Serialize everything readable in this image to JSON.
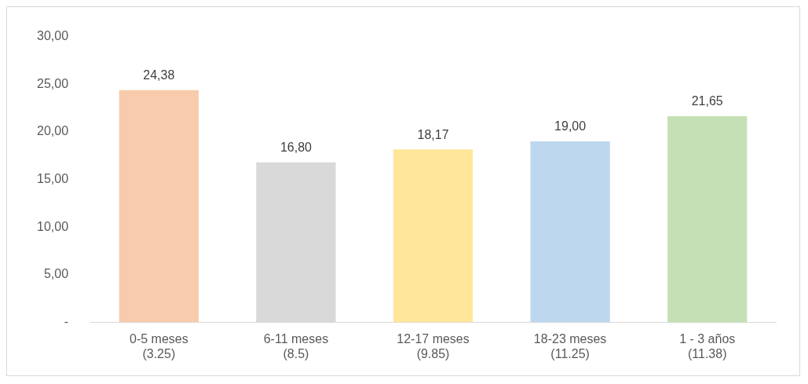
{
  "chart_data": {
    "type": "bar",
    "categories": [
      "0-5 meses\n(3.25)",
      "6-11 meses\n(8.5)",
      "12-17 meses\n(9.85)",
      "18-23 meses\n(11.25)",
      "1 - 3 años\n(11.38)"
    ],
    "values": [
      24.38,
      16.8,
      18.17,
      19.0,
      21.65
    ],
    "colors": [
      "#f8cbad",
      "#d9d9d9",
      "#ffe699",
      "#bdd7ee",
      "#c5e0b4"
    ],
    "value_labels": [
      "24,38",
      "16,80",
      "18,17",
      "19,00",
      "21,65"
    ],
    "ylim": [
      0,
      30
    ],
    "yticks": [
      {
        "value": 0,
        "label": "-"
      },
      {
        "value": 5,
        "label": "5,00"
      },
      {
        "value": 10,
        "label": "10,00"
      },
      {
        "value": 15,
        "label": "15,00"
      },
      {
        "value": 20,
        "label": "20,00"
      },
      {
        "value": 25,
        "label": "25,00"
      },
      {
        "value": 30,
        "label": "30,00"
      }
    ],
    "grid": false,
    "legend": false
  }
}
